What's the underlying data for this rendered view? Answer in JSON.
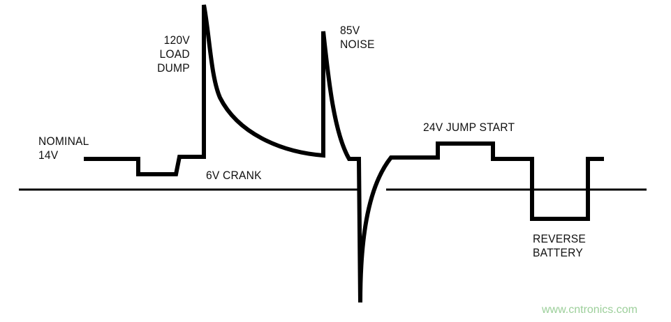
{
  "labels": {
    "nominal": [
      "NOMINAL",
      "14V"
    ],
    "load_dump": [
      "120V",
      "LOAD",
      "DUMP"
    ],
    "noise": [
      "85V",
      "NOISE"
    ],
    "crank": "6V CRANK",
    "jump_start": "24V JUMP START",
    "reverse_battery": [
      "REVERSE",
      "BATTERY"
    ]
  },
  "watermark": "www.cntronics.com",
  "colors": {
    "line": "#000000",
    "watermark": "#9ccf9a"
  }
}
